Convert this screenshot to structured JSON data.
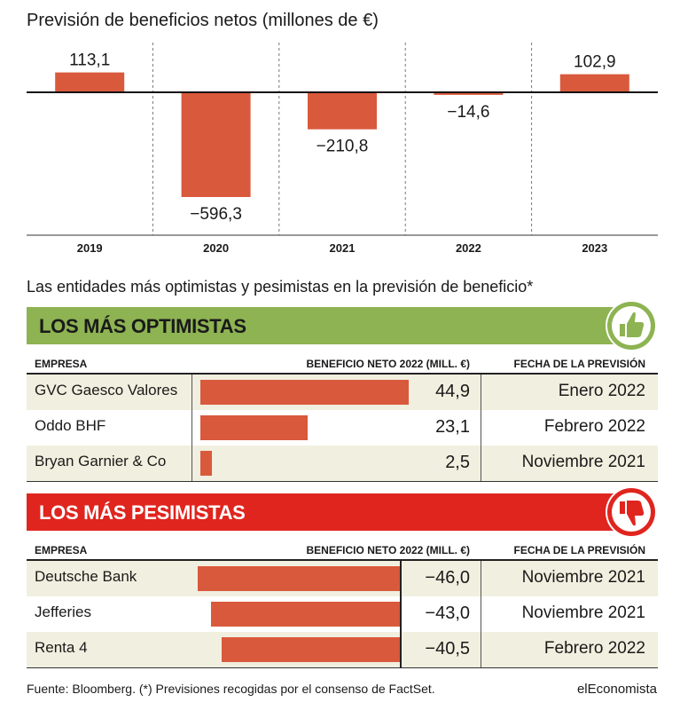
{
  "chart_data": [
    {
      "type": "bar",
      "title": "Previsión de beneficios netos (millones de €)",
      "categories": [
        "2019",
        "2020",
        "2021",
        "2022",
        "2023"
      ],
      "values": [
        113.1,
        -596.3,
        -210.8,
        -14.6,
        102.9
      ],
      "value_labels": [
        "113,1",
        "−596,3",
        "−210,8",
        "−14,6",
        "102,9"
      ],
      "bar_color": "#d9593c"
    },
    {
      "type": "bar",
      "orientation": "horizontal",
      "title": "LOS MÁS OPTIMISTAS",
      "categories": [
        "GVC Gaesco Valores",
        "Oddo BHF",
        "Bryan Garnier & Co"
      ],
      "values": [
        44.9,
        23.1,
        2.5
      ],
      "value_labels": [
        "44,9",
        "23,1",
        "2,5"
      ],
      "dates": [
        "Enero 2022",
        "Febrero 2022",
        "Noviembre 2021"
      ]
    },
    {
      "type": "bar",
      "orientation": "horizontal",
      "title": "LOS MÁS PESIMISTAS",
      "categories": [
        "Deutsche Bank",
        "Jefferies",
        "Renta 4"
      ],
      "values": [
        -46.0,
        -43.0,
        -40.5
      ],
      "value_labels": [
        "−46,0",
        "−43,0",
        "−40,5"
      ],
      "dates": [
        "Noviembre 2021",
        "Noviembre 2021",
        "Febrero 2022"
      ]
    }
  ],
  "subtitle": "Las entidades más optimistas y pesimistas en la previsión de beneficio*",
  "headers": {
    "company": "EMPRESA",
    "value": "BENEFICIO NETO 2022 (MILL. €)",
    "date": "FECHA DE LA PREVISIÓN"
  },
  "optimists": {
    "title": "LOS MÁS OPTIMISTAS",
    "rows": [
      {
        "company": "GVC Gaesco Valores",
        "value": 44.9,
        "label": "44,9",
        "date": "Enero 2022"
      },
      {
        "company": "Oddo BHF",
        "value": 23.1,
        "label": "23,1",
        "date": "Febrero 2022"
      },
      {
        "company": "Bryan Garnier & Co",
        "value": 2.5,
        "label": "2,5",
        "date": "Noviembre 2021"
      }
    ]
  },
  "pessimists": {
    "title": "LOS MÁS PESIMISTAS",
    "rows": [
      {
        "company": "Deutsche Bank",
        "value": -46.0,
        "label": "−46,0",
        "date": "Noviembre 2021"
      },
      {
        "company": "Jefferies",
        "value": -43.0,
        "label": "−43,0",
        "date": "Noviembre 2021"
      },
      {
        "company": "Renta 4",
        "value": -40.5,
        "label": "−40,5",
        "date": "Febrero 2022"
      }
    ]
  },
  "footer": {
    "note": "Fuente: Bloomberg. (*) Previsiones recogidas por el consenso de FactSet.",
    "brand": "elEconomista"
  },
  "colors": {
    "bar": "#d9593c",
    "optimist_banner": "#8db352",
    "pessimist_banner": "#e0251f",
    "row_shade": "#f1efdf"
  },
  "icons": {
    "optimist": "thumbs-up-icon",
    "pessimist": "thumbs-down-icon"
  }
}
